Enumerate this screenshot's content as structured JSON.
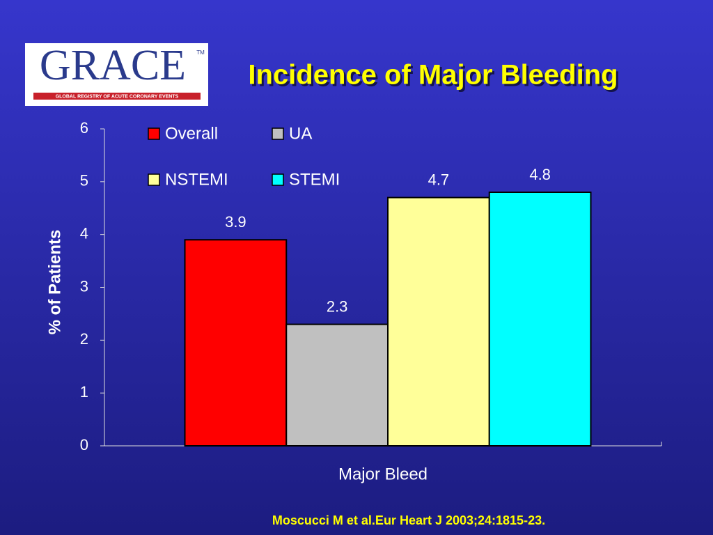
{
  "logo": {
    "name": "GRACE",
    "trademark": "TM",
    "tagline": "GLOBAL REGISTRY OF ACUTE CORONARY EVENTS"
  },
  "chart_data": {
    "type": "bar",
    "title": "Incidence of Major Bleeding",
    "y_label": "% of Patients",
    "categories": [
      "Major Bleed"
    ],
    "series": [
      {
        "name": "Overall",
        "color": "#ff0000",
        "values": [
          3.9
        ]
      },
      {
        "name": "UA",
        "color": "#c0c0c0",
        "values": [
          2.3
        ]
      },
      {
        "name": "NSTEMI",
        "color": "#ffff99",
        "values": [
          4.7
        ]
      },
      {
        "name": "STEMI",
        "color": "#00ffff",
        "values": [
          4.8
        ]
      }
    ],
    "ylim": [
      0,
      6
    ],
    "yticks": [
      0,
      1,
      2,
      3,
      4,
      5,
      6
    ],
    "grid": false,
    "legend": "top-left"
  },
  "footnote": "Moscucci M  et al.Eur Heart J 2003;24:1815-23."
}
